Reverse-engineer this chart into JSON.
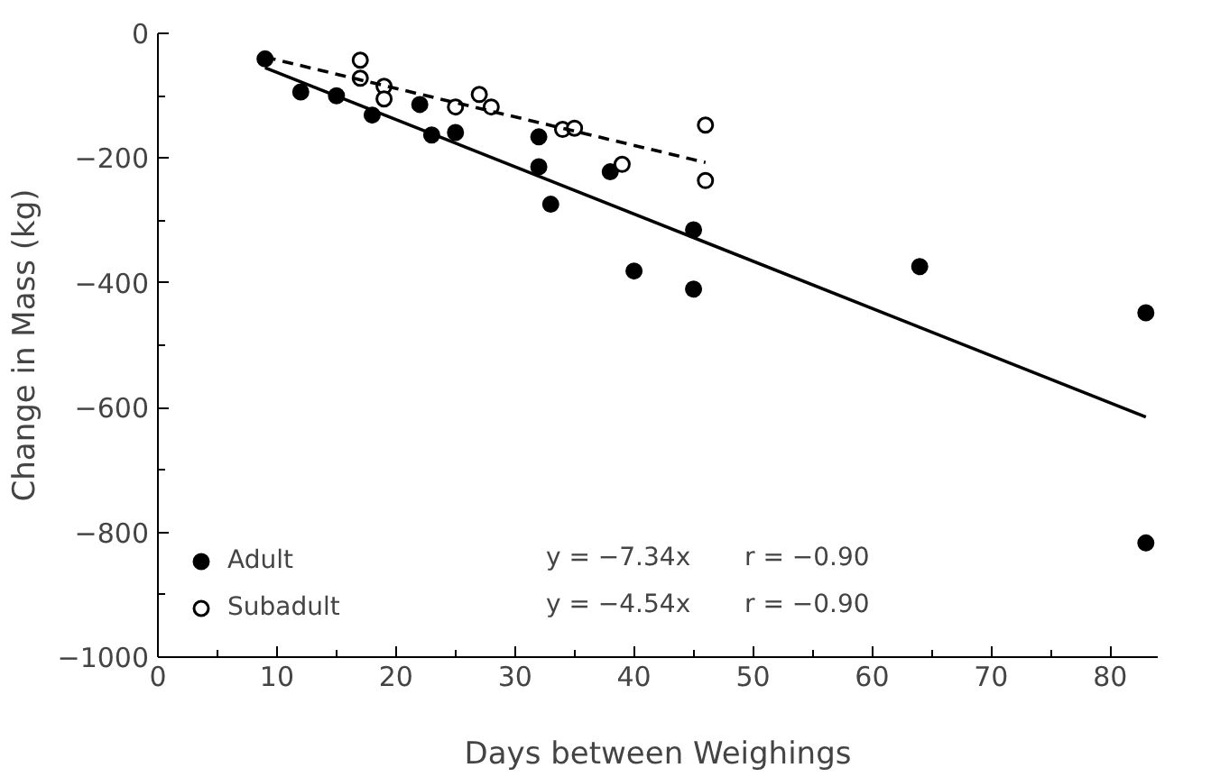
{
  "chart_data": {
    "type": "scatter",
    "xlabel": "Days between Weighings",
    "ylabel": "Change in Mass (kg)",
    "xlim": [
      0,
      84
    ],
    "xticks": [
      0,
      10,
      20,
      30,
      40,
      50,
      60,
      70,
      80
    ],
    "ylim": [
      -1000,
      0
    ],
    "yticks": [
      {
        "value": 0,
        "label": "0"
      },
      {
        "value": -200,
        "label": "−200"
      },
      {
        "value": -400,
        "label": "−400"
      },
      {
        "value": -600,
        "label": "−600"
      },
      {
        "value": -800,
        "label": "−800"
      },
      {
        "value": -1000,
        "label": "−1000"
      }
    ],
    "grid": false,
    "legend": "bottom left",
    "series": [
      {
        "name": "Adult",
        "color": "#000000",
        "marker": "circle",
        "x": [
          9,
          12,
          15,
          18,
          22,
          23,
          25,
          32,
          32,
          33,
          38,
          40,
          45,
          45,
          64,
          83,
          83
        ],
        "values": [
          -41,
          -94,
          -100,
          -131,
          -114,
          -163,
          -159,
          -166,
          -214,
          -274,
          -222,
          -381,
          -315,
          -410,
          -374,
          -448,
          -817
        ]
      },
      {
        "name": "Subadult",
        "color": "#ffffff",
        "marker": "circle",
        "x": [
          17,
          17,
          19,
          19,
          25,
          27,
          28,
          34,
          35,
          39,
          46,
          46
        ],
        "values": [
          -43,
          -72,
          -85,
          -105,
          -118,
          -98,
          -118,
          -154,
          -152,
          -210,
          -147,
          -236
        ]
      },
      {
        "type": "line",
        "color": "#000000",
        "marker": "none",
        "line_style": "solid",
        "x": [
          9,
          83
        ],
        "values": [
          -55,
          -615
        ]
      },
      {
        "type": "line",
        "color": "#000000",
        "marker": "none",
        "line_style": "dashed",
        "x": [
          9,
          46
        ],
        "values": [
          -38,
          -207
        ]
      }
    ],
    "annotations": [
      "y = −7.34x",
      "r = −0.90",
      "y = −4.54x",
      "r = −0.90"
    ]
  }
}
